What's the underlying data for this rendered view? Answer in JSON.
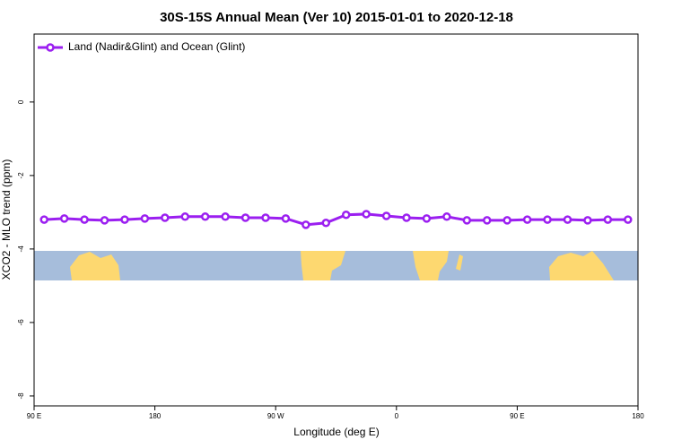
{
  "chart_data": {
    "type": "line",
    "title": "30S-15S Annual Mean (Ver 10)   2015-01-01 to 2020-12-18",
    "x_label": "Longitude (deg E)",
    "y_label": "XCO2 - MLO trend (ppm)",
    "xlim": [
      90,
      540
    ],
    "ylim": [
      -8.27,
      1.85
    ],
    "xticks": [
      {
        "value": 90,
        "label": "90 E"
      },
      180,
      {
        "value": 270,
        "label": "90 W"
      },
      {
        "value": 360,
        "label": "0"
      },
      {
        "value": 450,
        "label": "90 E"
      },
      {
        "value": 540,
        "label": "180"
      }
    ],
    "yticks": [
      0,
      -2,
      -4,
      -6,
      -8
    ],
    "legend": "top-left",
    "x": [
      97.5,
      112.5,
      127.5,
      142.5,
      157.5,
      172.5,
      187.5,
      202.5,
      217.5,
      232.5,
      247.5,
      262.5,
      277.5,
      292.5,
      307.5,
      322.5,
      337.5,
      352.5,
      367.5,
      382.5,
      397.5,
      412.5,
      427.5,
      442.5,
      457.5,
      472.5,
      487.5,
      502.5,
      517.5,
      532.5
    ],
    "series": [
      {
        "name": "Land (Nadir&Glint) and Ocean (Glint)",
        "color": "#9b1ff0",
        "values": [
          -3.2,
          -3.17,
          -3.2,
          -3.22,
          -3.2,
          -3.17,
          -3.15,
          -3.12,
          -3.12,
          -3.12,
          -3.15,
          -3.15,
          -3.17,
          -3.34,
          -3.29,
          -3.07,
          -3.05,
          -3.1,
          -3.15,
          -3.17,
          -3.12,
          -3.22,
          -3.22,
          -3.22,
          -3.2,
          -3.2,
          -3.2,
          -3.22,
          -3.2,
          -3.2
        ]
      }
    ]
  }
}
